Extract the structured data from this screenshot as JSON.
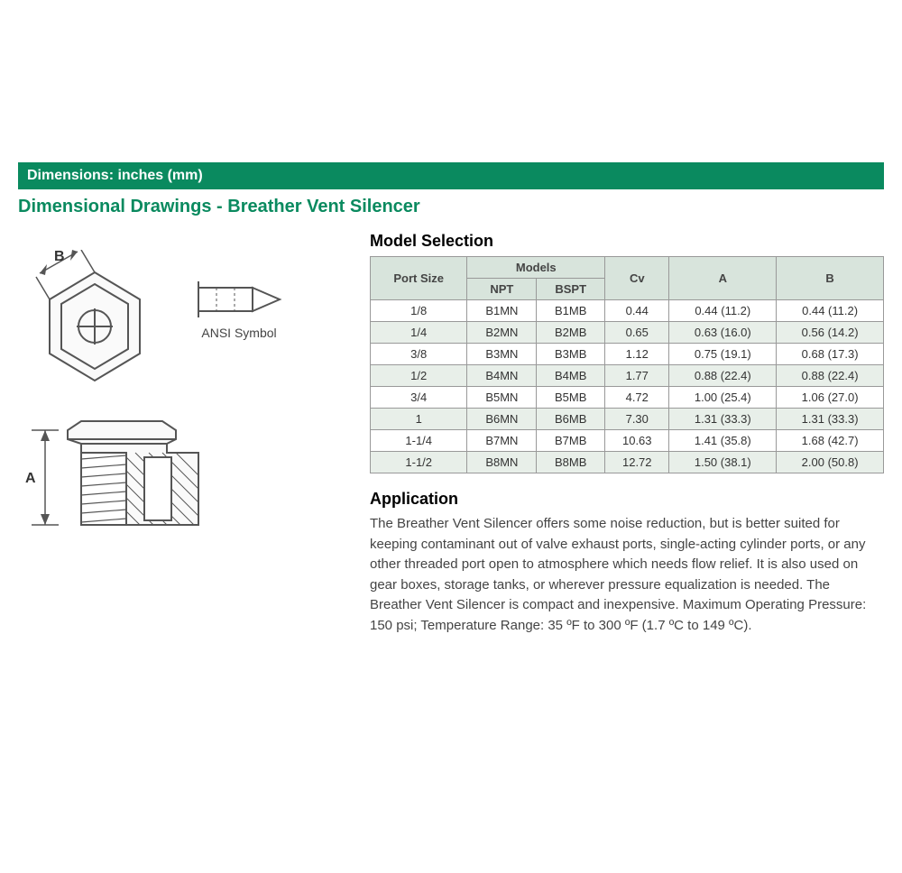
{
  "banner": "Dimensions: inches (mm)",
  "subtitle": "Dimensional Drawings - Breather Vent Silencer",
  "symbol_label": "ANSI\nSymbol",
  "dim_label_A": "A",
  "dim_label_B": "B",
  "model_heading": "Model Selection",
  "table": {
    "header_port": "Port Size",
    "header_models": "Models",
    "header_npt": "NPT",
    "header_bspt": "BSPT",
    "header_cv": "Cv",
    "header_a": "A",
    "header_b": "B",
    "rows": [
      {
        "port": "1/8",
        "npt": "B1MN",
        "bspt": "B1MB",
        "cv": "0.44",
        "a": "0.44 (11.2)",
        "b": "0.44 (11.2)"
      },
      {
        "port": "1/4",
        "npt": "B2MN",
        "bspt": "B2MB",
        "cv": "0.65",
        "a": "0.63 (16.0)",
        "b": "0.56 (14.2)"
      },
      {
        "port": "3/8",
        "npt": "B3MN",
        "bspt": "B3MB",
        "cv": "1.12",
        "a": "0.75 (19.1)",
        "b": "0.68 (17.3)"
      },
      {
        "port": "1/2",
        "npt": "B4MN",
        "bspt": "B4MB",
        "cv": "1.77",
        "a": "0.88 (22.4)",
        "b": "0.88 (22.4)"
      },
      {
        "port": "3/4",
        "npt": "B5MN",
        "bspt": "B5MB",
        "cv": "4.72",
        "a": "1.00 (25.4)",
        "b": "1.06 (27.0)"
      },
      {
        "port": "1",
        "npt": "B6MN",
        "bspt": "B6MB",
        "cv": "7.30",
        "a": "1.31 (33.3)",
        "b": "1.31 (33.3)"
      },
      {
        "port": "1-1/4",
        "npt": "B7MN",
        "bspt": "B7MB",
        "cv": "10.63",
        "a": "1.41 (35.8)",
        "b": "1.68 (42.7)"
      },
      {
        "port": "1-1/2",
        "npt": "B8MN",
        "bspt": "B8MB",
        "cv": "12.72",
        "a": "1.50 (38.1)",
        "b": "2.00 (50.8)"
      }
    ]
  },
  "app_heading": "Application",
  "app_text": "The Breather Vent Silencer offers some noise reduction, but is better suited for keeping contaminant out of valve exhaust ports, single-acting cylinder ports, or any other threaded port open to atmosphere which needs flow relief. It is also used on gear boxes, storage tanks, or wherever pressure equalization is needed. The Breather Vent Silencer is compact and inexpensive. Maximum Operating Pressure: 150 psi; Temperature Range: 35 ºF to 300 ºF (1.7 ºC to 149 ºC).",
  "colors": {
    "brand_green": "#0a8a5f",
    "header_bg": "#d8e4dc",
    "alt_row": "#e8efe9",
    "border": "#999999",
    "text": "#444444"
  }
}
